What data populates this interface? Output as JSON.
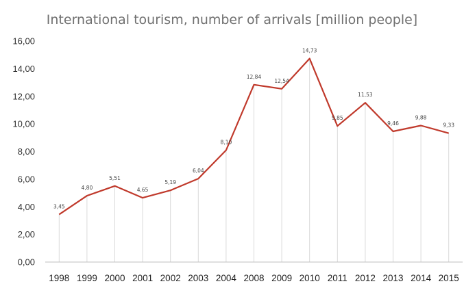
{
  "chart_data": {
    "type": "line",
    "title": "International tourism, number of arrivals [million people]",
    "xlabel": "",
    "ylabel": "",
    "categories": [
      "1998",
      "1999",
      "2000",
      "2001",
      "2002",
      "2003",
      "2004",
      "2008",
      "2009",
      "2010",
      "2011",
      "2012",
      "2013",
      "2014",
      "2015"
    ],
    "series": [
      {
        "values": [
          3.45,
          4.8,
          5.51,
          4.65,
          5.19,
          6.04,
          8.1,
          12.84,
          12.54,
          14.73,
          9.85,
          11.53,
          9.46,
          9.88,
          9.33
        ],
        "labels": [
          "3,45",
          "4,80",
          "5,51",
          "4,65",
          "5,19",
          "6,04",
          "8,10",
          "12,84",
          "12,54",
          "14,73",
          "9,85",
          "11,53",
          "9,46",
          "9,88",
          "9,33"
        ],
        "color": "#c0392b"
      }
    ],
    "y_ticks": [
      "0,00",
      "2,00",
      "4,00",
      "6,00",
      "8,00",
      "10,00",
      "12,00",
      "14,00",
      "16,00"
    ],
    "ylim": [
      0,
      16
    ],
    "grid": "vertical category lines",
    "legend": "none",
    "colors": {
      "line": "#c0392b",
      "grid": "#d9d9d9",
      "axis": "#bfbfbf"
    }
  }
}
